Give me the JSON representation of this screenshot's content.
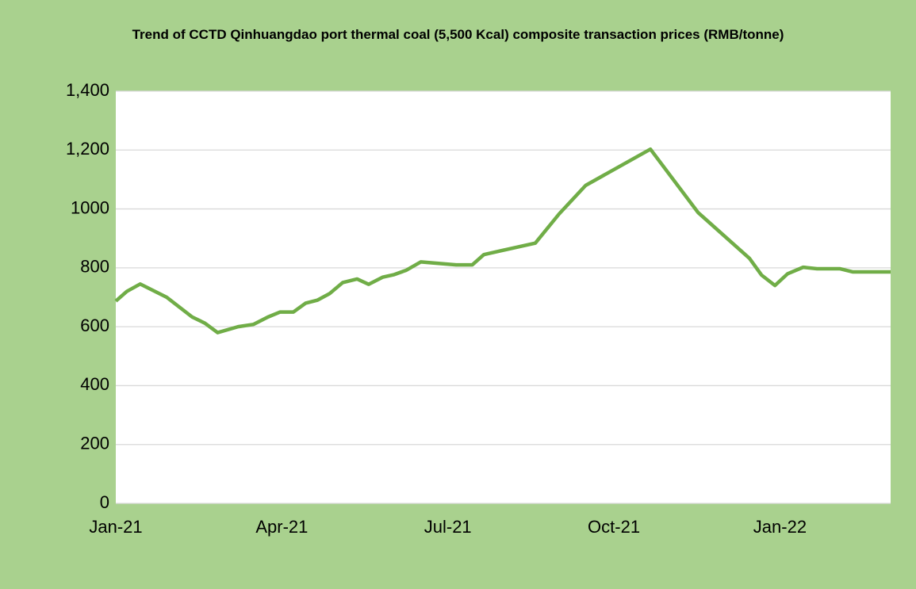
{
  "chart_data": {
    "type": "line",
    "title": "Trend of CCTD Qinhuangdao port thermal coal (5,500 Kcal) composite transaction prices (RMB/tonne)",
    "x": [
      0,
      0.2,
      0.44,
      0.92,
      1.38,
      1.61,
      1.84,
      2.21,
      2.49,
      2.75,
      2.97,
      3.21,
      3.43,
      3.64,
      3.86,
      4.1,
      4.36,
      4.57,
      4.82,
      5.03,
      5.25,
      5.51,
      6.15,
      6.44,
      6.65,
      7.58,
      8.01,
      8.49,
      9.66,
      10.52,
      11.45,
      11.67,
      11.91,
      12.14,
      12.42,
      12.67,
      13.08,
      13.32,
      14.0
    ],
    "series": [
      {
        "name": "Composite transaction price",
        "color": "#70ad47",
        "values": [
          687,
          720,
          745,
          700,
          633,
          612,
          580,
          600,
          608,
          633,
          650,
          650,
          680,
          690,
          712,
          750,
          762,
          744,
          768,
          777,
          792,
          820,
          810,
          810,
          845,
          884,
          983,
          1080,
          1203,
          988,
          832,
          775,
          740,
          780,
          802,
          797,
          797,
          786,
          786
        ]
      }
    ],
    "xlim": [
      0,
      14
    ],
    "xticks": [
      {
        "value": 0,
        "label": "Jan-21"
      },
      {
        "value": 3,
        "label": "Apr-21"
      },
      {
        "value": 6,
        "label": "Jul-21"
      },
      {
        "value": 9,
        "label": "Oct-21"
      },
      {
        "value": 12,
        "label": "Jan-22"
      }
    ],
    "ylim": [
      0,
      1400
    ],
    "yticks": [
      0,
      200,
      400,
      600,
      800,
      1000,
      {
        "value": 1200,
        "label": "1,200"
      },
      {
        "value": 1400,
        "label": "1,400"
      }
    ],
    "grid": true
  }
}
